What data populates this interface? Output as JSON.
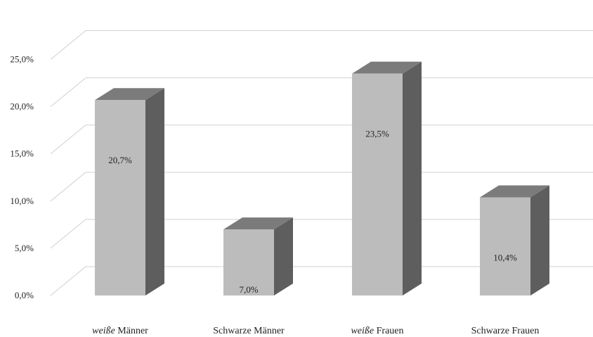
{
  "chart_data": {
    "type": "bar",
    "style": "3d-column",
    "categories": [
      {
        "prefix": "weiße",
        "suffix": " Männer"
      },
      {
        "prefix": "",
        "suffix": "Schwarze Männer"
      },
      {
        "prefix": "weiße",
        "suffix": " Frauen"
      },
      {
        "prefix": "",
        "suffix": "Schwarze Frauen"
      }
    ],
    "values": [
      20.7,
      7.0,
      23.5,
      10.4
    ],
    "data_labels": [
      "20,7%",
      "7,0%",
      "23,5%",
      "10,4%"
    ],
    "y_ticks": [
      {
        "value": 0,
        "label": "0,0%"
      },
      {
        "value": 5,
        "label": "5,0%"
      },
      {
        "value": 10,
        "label": "10,0%"
      },
      {
        "value": 15,
        "label": "15,0%"
      },
      {
        "value": 20,
        "label": "20,0%"
      },
      {
        "value": 25,
        "label": "25,0%"
      }
    ],
    "ylim": [
      0,
      27.5
    ],
    "title": "",
    "xlabel": "",
    "ylabel": "",
    "grid": true,
    "legend": "none",
    "colors": {
      "bar_front": "#bcbcbc",
      "bar_top": "#7b7b7b",
      "bar_side": "#5e5e5e",
      "grid": "#d0d0d0"
    }
  }
}
